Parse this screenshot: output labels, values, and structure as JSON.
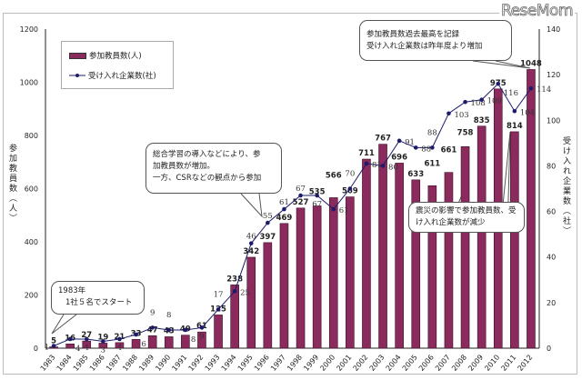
{
  "logo": "ReseMom",
  "chart_data": {
    "type": "bar+line",
    "categories": [
      "1983",
      "1984",
      "1985",
      "1986",
      "1987",
      "1988",
      "1989",
      "1990",
      "1991",
      "1992",
      "1993",
      "1994",
      "1995",
      "1996",
      "1997",
      "1998",
      "1999",
      "2000",
      "2001",
      "2002",
      "2003",
      "2004",
      "2005",
      "2006",
      "2007",
      "2008",
      "2009",
      "2010",
      "2011",
      "2012"
    ],
    "series": [
      {
        "name": "参加教員数(人)",
        "type": "bar",
        "axis": "left",
        "color": "#8b2a5c",
        "values": [
          5,
          16,
          27,
          19,
          21,
          33,
          47,
          43,
          49,
          61,
          125,
          238,
          342,
          397,
          469,
          527,
          535,
          566,
          569,
          711,
          767,
          696,
          633,
          611,
          661,
          758,
          835,
          975,
          814,
          1048
        ]
      },
      {
        "name": "受け入れ企業数(社)",
        "type": "line",
        "axis": "right",
        "color": "#1c1c6b",
        "values": [
          1,
          4,
          4,
          3,
          4,
          6,
          9,
          8,
          8,
          9,
          17,
          25,
          46,
          55,
          61,
          67,
          67,
          61,
          70,
          81,
          80,
          91,
          88,
          88,
          103,
          108,
          109,
          116,
          104,
          114
        ]
      }
    ],
    "ylabel": "参加教員数（人）",
    "ylabel_right": "受け入れ企業数（社）",
    "ylim": [
      0,
      1200
    ],
    "yticks": [
      0,
      200,
      400,
      600,
      800,
      1000,
      1200
    ],
    "ylim_right": [
      0,
      140
    ],
    "yticks_right": [
      0,
      20,
      40,
      60,
      80,
      100,
      120,
      140
    ],
    "legend": "top-left",
    "grid": false,
    "annotations": [
      [
        "1983年",
        "1社５名でスタート"
      ],
      [
        "総合学習の導入などにより、参",
        "加教員数が増加。",
        "一方、CSRなどの観点から参加"
      ],
      [
        "参加教員数過去最高を記録",
        "受け入れ企業数は昨年度より増加"
      ],
      [
        "震災の影響で参加教員数、受",
        "け入れ企業数が減少"
      ]
    ]
  }
}
